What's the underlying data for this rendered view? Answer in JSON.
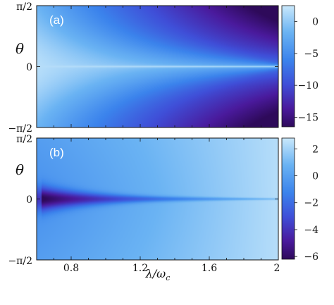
{
  "chart_data": [
    {
      "type": "heatmap",
      "panel_label": "(a)",
      "ylabel": "θ",
      "y_tick_labels": [
        "π/2",
        "0",
        "−π/2"
      ],
      "x_range": [
        0.6,
        2.0
      ],
      "y_range": [
        -1.5708,
        1.5708
      ],
      "colorbar": {
        "range": [
          -16.5,
          2.5
        ],
        "ticks": [
          0,
          -5,
          -10,
          -15
        ],
        "tick_labels": [
          "0",
          "−5",
          "−10",
          "−15"
        ],
        "colormap": [
          "#2e0a5a",
          "#4a1a9c",
          "#3f4fd8",
          "#3b83ec",
          "#6ab3f3",
          "#c9e8fb"
        ]
      },
      "description_values": {
        "ridge_theta": 0,
        "ridge_value_max": 2.5,
        "corner_value_min": -16
      }
    },
    {
      "type": "heatmap",
      "panel_label": "(b)",
      "ylabel": "θ",
      "xlabel": "λ/ω_c",
      "x_range": [
        0.6,
        2.0
      ],
      "x_ticks": [
        0.8,
        1.2,
        1.6,
        2.0
      ],
      "x_tick_labels": [
        "0.8",
        "1.2",
        "1.6",
        "2"
      ],
      "y_range": [
        -1.5708,
        1.5708
      ],
      "y_tick_labels": [
        "π/2",
        "0",
        "−π/2"
      ],
      "colorbar": {
        "range": [
          -6.2,
          2.8
        ],
        "ticks": [
          2,
          0,
          -2,
          -4,
          -6
        ],
        "tick_labels": [
          "2",
          "0",
          "−2",
          "−4",
          "−6"
        ],
        "colormap": [
          "#2e0a5a",
          "#4a1a9c",
          "#3f4fd8",
          "#3b83ec",
          "#6ab3f3",
          "#c9e8fb"
        ]
      },
      "description_values": {
        "dip_theta": 0,
        "dip_value_min": -6,
        "background_left": 0,
        "background_right": 2.5
      }
    }
  ]
}
